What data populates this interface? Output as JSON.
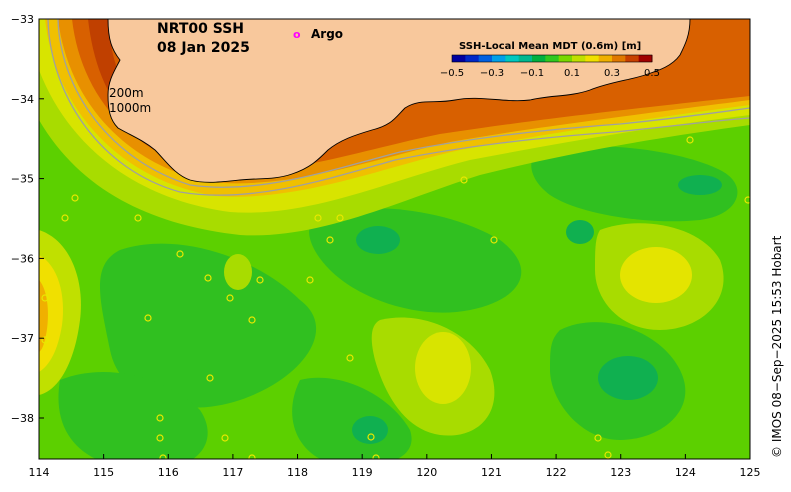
{
  "title": {
    "line1": "NRT00 SSH",
    "line2": "08 Jan 2025"
  },
  "argo_legend": {
    "marker": "o",
    "label": "Argo",
    "color": "#ff00ff"
  },
  "colorbar": {
    "title": "SSH-Local Mean MDT (0.6m) [m]",
    "tick_labels": [
      "−0.5",
      "−0.3",
      "−0.1",
      "0.1",
      "0.3",
      "0.5"
    ],
    "colors": [
      "#0000a0",
      "#0028c8",
      "#0060e0",
      "#00a0e8",
      "#00c8c0",
      "#00b890",
      "#00b040",
      "#30c820",
      "#7ad800",
      "#c0e000",
      "#f0e000",
      "#f0b000",
      "#e07800",
      "#c84000",
      "#a00000"
    ]
  },
  "isobath_labels": [
    "200m",
    "1000m"
  ],
  "axes": {
    "x_ticks": [
      "114",
      "115",
      "116",
      "117",
      "118",
      "119",
      "120",
      "121",
      "122",
      "123",
      "124",
      "125"
    ],
    "y_ticks": [
      "−33",
      "−34",
      "−35",
      "−36",
      "−37",
      "−38"
    ]
  },
  "credit": "© IMOS 08−Sep−2025 15:53 Hobart",
  "colors": {
    "land": "#f8c89c",
    "coastline": "#000000",
    "isobath": "#a0a0a0",
    "argo": "#ff00ff"
  }
}
